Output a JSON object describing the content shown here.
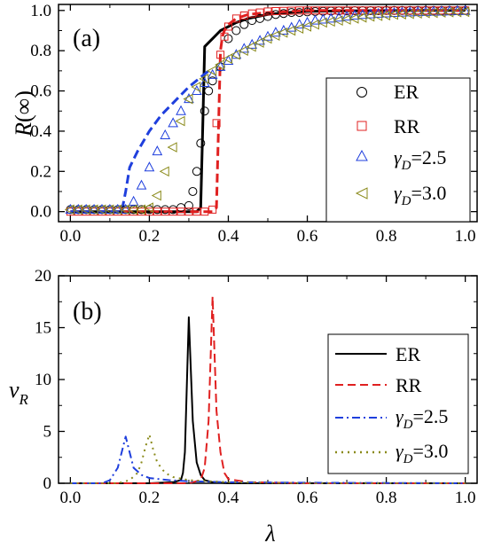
{
  "chart_data": [
    {
      "type": "scatter",
      "panel_label": "(a)",
      "ylabel": "R(∞)",
      "xlabel": "",
      "xlim": [
        -0.03,
        1.03
      ],
      "ylim": [
        -0.05,
        1.03
      ],
      "x_ticks": [
        "0.0",
        "0.2",
        "0.4",
        "0.6",
        "0.8",
        "1.0"
      ],
      "y_ticks": [
        "0.0",
        "0.2",
        "0.4",
        "0.6",
        "0.8",
        "1.0"
      ],
      "legend_position": "bottom-right",
      "series": [
        {
          "name": "ER",
          "marker": "circle",
          "color": "#000000",
          "x": [
            0.0,
            0.02,
            0.04,
            0.06,
            0.08,
            0.1,
            0.12,
            0.14,
            0.16,
            0.18,
            0.2,
            0.22,
            0.24,
            0.26,
            0.28,
            0.3,
            0.31,
            0.32,
            0.33,
            0.34,
            0.35,
            0.36,
            0.38,
            0.4,
            0.42,
            0.44,
            0.46,
            0.48,
            0.5,
            0.52,
            0.54,
            0.56,
            0.58,
            0.6,
            0.62,
            0.64,
            0.66,
            0.68,
            0.7,
            0.72,
            0.74,
            0.76,
            0.78,
            0.8,
            0.82,
            0.84,
            0.86,
            0.88,
            0.9,
            0.92,
            0.94,
            0.96,
            0.98,
            1.0
          ],
          "y": [
            0.01,
            0.01,
            0.01,
            0.01,
            0.01,
            0.01,
            0.01,
            0.01,
            0.01,
            0.01,
            0.01,
            0.01,
            0.01,
            0.01,
            0.02,
            0.03,
            0.1,
            0.2,
            0.34,
            0.5,
            0.6,
            0.65,
            0.72,
            0.86,
            0.9,
            0.93,
            0.95,
            0.96,
            0.97,
            0.98,
            0.985,
            0.99,
            0.99,
            0.993,
            0.995,
            0.996,
            0.997,
            0.998,
            0.998,
            0.999,
            0.999,
            0.999,
            0.999,
            1.0,
            1.0,
            1.0,
            1.0,
            1.0,
            1.0,
            1.0,
            1.0,
            1.0,
            1.0,
            1.0
          ]
        },
        {
          "name": "RR",
          "marker": "square",
          "color": "#e02020",
          "x": [
            0.0,
            0.02,
            0.04,
            0.06,
            0.08,
            0.1,
            0.12,
            0.14,
            0.16,
            0.18,
            0.2,
            0.22,
            0.24,
            0.26,
            0.28,
            0.3,
            0.32,
            0.34,
            0.36,
            0.37,
            0.38,
            0.39,
            0.4,
            0.42,
            0.44,
            0.46,
            0.48,
            0.5,
            0.52,
            0.54,
            0.56,
            0.58,
            0.6,
            0.62,
            0.64,
            0.66,
            0.68,
            0.7,
            0.72,
            0.74,
            0.76,
            0.78,
            0.8,
            0.82,
            0.84,
            0.86,
            0.88,
            0.9,
            0.92,
            0.94,
            0.96,
            0.98,
            1.0
          ],
          "y": [
            0.0,
            0.0,
            0.0,
            0.0,
            0.0,
            0.0,
            0.0,
            0.0,
            0.0,
            0.0,
            0.0,
            0.0,
            0.0,
            0.0,
            0.0,
            0.0,
            0.0,
            0.0,
            0.01,
            0.44,
            0.78,
            0.87,
            0.92,
            0.96,
            0.975,
            0.985,
            0.99,
            0.995,
            0.997,
            0.998,
            0.999,
            1.0,
            1.0,
            1.0,
            1.0,
            1.0,
            1.0,
            1.0,
            1.0,
            1.0,
            1.0,
            1.0,
            1.0,
            1.0,
            1.0,
            1.0,
            1.0,
            1.0,
            1.0,
            1.0,
            1.0,
            1.0,
            1.0
          ]
        },
        {
          "name": "γD=2.5",
          "marker": "triangle-up",
          "color": "#1f3fdd",
          "x": [
            0.0,
            0.02,
            0.04,
            0.06,
            0.08,
            0.1,
            0.12,
            0.14,
            0.16,
            0.18,
            0.2,
            0.22,
            0.24,
            0.26,
            0.28,
            0.3,
            0.32,
            0.34,
            0.36,
            0.38,
            0.4,
            0.42,
            0.44,
            0.46,
            0.48,
            0.5,
            0.52,
            0.54,
            0.56,
            0.58,
            0.6,
            0.62,
            0.64,
            0.66,
            0.68,
            0.7,
            0.72,
            0.74,
            0.76,
            0.78,
            0.8,
            0.82,
            0.84,
            0.86,
            0.88,
            0.9,
            0.92,
            0.94,
            0.96,
            0.98,
            1.0
          ],
          "y": [
            0.01,
            0.01,
            0.01,
            0.01,
            0.01,
            0.01,
            0.01,
            0.01,
            0.05,
            0.13,
            0.22,
            0.3,
            0.38,
            0.44,
            0.5,
            0.56,
            0.6,
            0.64,
            0.68,
            0.72,
            0.75,
            0.78,
            0.81,
            0.83,
            0.85,
            0.87,
            0.89,
            0.9,
            0.915,
            0.93,
            0.94,
            0.95,
            0.955,
            0.96,
            0.965,
            0.97,
            0.975,
            0.978,
            0.981,
            0.984,
            0.986,
            0.988,
            0.99,
            0.991,
            0.992,
            0.993,
            0.994,
            0.995,
            0.996,
            0.997,
            0.998
          ]
        },
        {
          "name": "γD=3.0",
          "marker": "triangle-left",
          "color": "#8a8a1a",
          "x": [
            0.0,
            0.02,
            0.04,
            0.06,
            0.08,
            0.1,
            0.12,
            0.14,
            0.16,
            0.18,
            0.2,
            0.22,
            0.24,
            0.26,
            0.28,
            0.3,
            0.32,
            0.34,
            0.36,
            0.38,
            0.4,
            0.42,
            0.44,
            0.46,
            0.48,
            0.5,
            0.52,
            0.54,
            0.56,
            0.58,
            0.6,
            0.62,
            0.64,
            0.66,
            0.68,
            0.7,
            0.72,
            0.74,
            0.76,
            0.78,
            0.8,
            0.82,
            0.84,
            0.86,
            0.88,
            0.9,
            0.92,
            0.94,
            0.96,
            0.98,
            1.0
          ],
          "y": [
            0.01,
            0.01,
            0.01,
            0.01,
            0.01,
            0.01,
            0.01,
            0.01,
            0.01,
            0.01,
            0.02,
            0.08,
            0.2,
            0.32,
            0.45,
            0.56,
            0.62,
            0.66,
            0.7,
            0.73,
            0.76,
            0.78,
            0.8,
            0.82,
            0.84,
            0.86,
            0.875,
            0.89,
            0.9,
            0.91,
            0.92,
            0.93,
            0.94,
            0.945,
            0.95,
            0.955,
            0.96,
            0.965,
            0.97,
            0.973,
            0.976,
            0.979,
            0.981,
            0.983,
            0.985,
            0.987,
            0.988,
            0.99,
            0.991,
            0.992,
            0.993
          ]
        }
      ],
      "curves": [
        {
          "name": "ER",
          "style": "solid",
          "color": "#000000",
          "width": 3,
          "x": [
            0.0,
            0.3,
            0.32,
            0.33,
            0.335,
            0.34,
            0.35,
            0.36,
            0.38,
            0.4,
            0.42,
            0.45,
            0.5,
            0.55,
            0.6,
            0.65,
            0.7,
            0.8,
            0.9,
            1.0
          ],
          "y": [
            0.0,
            0.0,
            0.0,
            0.02,
            0.4,
            0.82,
            0.84,
            0.86,
            0.9,
            0.92,
            0.94,
            0.96,
            0.98,
            0.99,
            0.995,
            0.997,
            0.998,
            0.999,
            1.0,
            1.0
          ]
        },
        {
          "name": "RR",
          "style": "dash",
          "color": "#e02020",
          "width": 3,
          "x": [
            0.0,
            0.36,
            0.37,
            0.375,
            0.38,
            0.385,
            0.39,
            0.4,
            0.42,
            0.45,
            0.5,
            0.6,
            0.8,
            1.0
          ],
          "y": [
            0.0,
            0.0,
            0.02,
            0.4,
            0.8,
            0.87,
            0.9,
            0.93,
            0.96,
            0.98,
            0.99,
            1.0,
            1.0,
            1.0
          ]
        },
        {
          "name": "γD=2.5",
          "style": "dash",
          "color": "#1f3fdd",
          "width": 3,
          "x": [
            0.0,
            0.13,
            0.14,
            0.15,
            0.17,
            0.2,
            0.23,
            0.26,
            0.3,
            0.35
          ],
          "y": [
            0.0,
            0.0,
            0.1,
            0.22,
            0.3,
            0.4,
            0.48,
            0.54,
            0.62,
            0.7
          ]
        }
      ]
    },
    {
      "type": "line",
      "panel_label": "(b)",
      "ylabel": "νR",
      "xlabel": "λ",
      "xlim": [
        -0.03,
        1.03
      ],
      "ylim": [
        0,
        20
      ],
      "x_ticks": [
        "0.0",
        "0.2",
        "0.4",
        "0.6",
        "0.8",
        "1.0"
      ],
      "y_ticks": [
        "0",
        "5",
        "10",
        "15",
        "20"
      ],
      "legend_position": "bottom-right",
      "series": [
        {
          "name": "ER",
          "style": "solid",
          "color": "#000000",
          "x": [
            0.0,
            0.2,
            0.26,
            0.28,
            0.285,
            0.29,
            0.3,
            0.31,
            0.32,
            0.33,
            0.34,
            0.36,
            0.4,
            0.6,
            1.0
          ],
          "y": [
            0.0,
            0.0,
            0.1,
            0.3,
            1.0,
            3.0,
            16.0,
            6.0,
            2.0,
            0.8,
            0.3,
            0.1,
            0.0,
            0.0,
            0.0
          ]
        },
        {
          "name": "RR",
          "style": "dash",
          "color": "#e02020",
          "x": [
            0.0,
            0.3,
            0.33,
            0.34,
            0.35,
            0.36,
            0.37,
            0.38,
            0.39,
            0.4,
            0.45,
            0.6,
            1.0
          ],
          "y": [
            0.0,
            0.0,
            0.3,
            1.5,
            6.0,
            18.0,
            7.0,
            3.0,
            1.0,
            0.4,
            0.1,
            0.0,
            0.0
          ]
        },
        {
          "name": "γD=2.5",
          "style": "dashdot",
          "color": "#1f3fdd",
          "x": [
            0.0,
            0.08,
            0.1,
            0.12,
            0.14,
            0.16,
            0.18,
            0.2,
            0.25,
            0.3,
            0.4,
            0.6,
            1.0
          ],
          "y": [
            0.0,
            0.0,
            0.3,
            1.5,
            4.5,
            1.5,
            0.8,
            0.5,
            0.3,
            0.2,
            0.1,
            0.05,
            0.0
          ]
        },
        {
          "name": "γD=3.0",
          "style": "dot",
          "color": "#8a8a1a",
          "x": [
            0.0,
            0.12,
            0.15,
            0.17,
            0.18,
            0.19,
            0.2,
            0.21,
            0.22,
            0.24,
            0.26,
            0.3,
            0.4,
            0.6,
            1.0
          ],
          "y": [
            0.0,
            0.0,
            0.3,
            1.0,
            2.0,
            3.5,
            4.7,
            3.2,
            2.0,
            1.0,
            0.6,
            0.3,
            0.1,
            0.0,
            0.0
          ]
        }
      ]
    }
  ],
  "legend_a": {
    "er": "ER",
    "rr": "RR",
    "g25_sym": "γ",
    "g25_sub": "D",
    "g25_val": "=2.5",
    "g30_sym": "γ",
    "g30_sub": "D",
    "g30_val": "=3.0"
  },
  "legend_b": {
    "er": "ER",
    "rr": "RR",
    "g25_sym": "γ",
    "g25_sub": "D",
    "g25_val": "=2.5",
    "g30_sym": "γ",
    "g30_sub": "D",
    "g30_val": "=3.0"
  },
  "labels": {
    "panel_a": "(a)",
    "panel_b": "(b)",
    "ylabel_a_main": "R",
    "ylabel_a_arg": "(∞)",
    "ylabel_b_main": "ν",
    "ylabel_b_sub": "R",
    "xlabel_b": "λ"
  }
}
